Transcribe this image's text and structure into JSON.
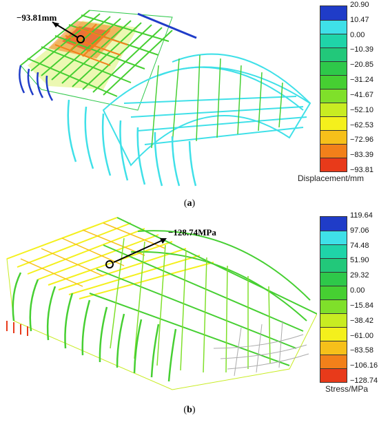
{
  "panel_a": {
    "annotation": "−93.81mm",
    "caption_open": "(",
    "caption_letter": "a",
    "caption_close": ")",
    "legend": {
      "title": "Displacement/mm",
      "labels": [
        "20.90",
        "10.47",
        "0.00",
        "−10.39",
        "−20.85",
        "−31.24",
        "−41.67",
        "−52.10",
        "−62.53",
        "−72.96",
        "−83.39",
        "−93.81"
      ],
      "colors": [
        "#1f3cc8",
        "#3fe0e8",
        "#1fd4a8",
        "#22c87a",
        "#2ec84a",
        "#46cf32",
        "#7fe02a",
        "#c8ec22",
        "#f4f01c",
        "#f6c01a",
        "#f2801a",
        "#e83a1a"
      ]
    }
  },
  "panel_b": {
    "annotation": "−128.74MPa",
    "caption_open": "(",
    "caption_letter": "b",
    "caption_close": ")",
    "legend": {
      "title": "Stress/MPa",
      "labels": [
        "119.64",
        "97.06",
        "74.48",
        "51.90",
        "29.32",
        "0.00",
        "−15.84",
        "−38.42",
        "−61.00",
        "−83.58",
        "−106.16",
        "−128.74"
      ],
      "colors": [
        "#1f3cc8",
        "#3fe0e8",
        "#1fd4a8",
        "#22c87a",
        "#2ec84a",
        "#46cf32",
        "#7fe02a",
        "#c8ec22",
        "#f4f01c",
        "#f6c01a",
        "#f2801a",
        "#e83a1a"
      ]
    }
  }
}
